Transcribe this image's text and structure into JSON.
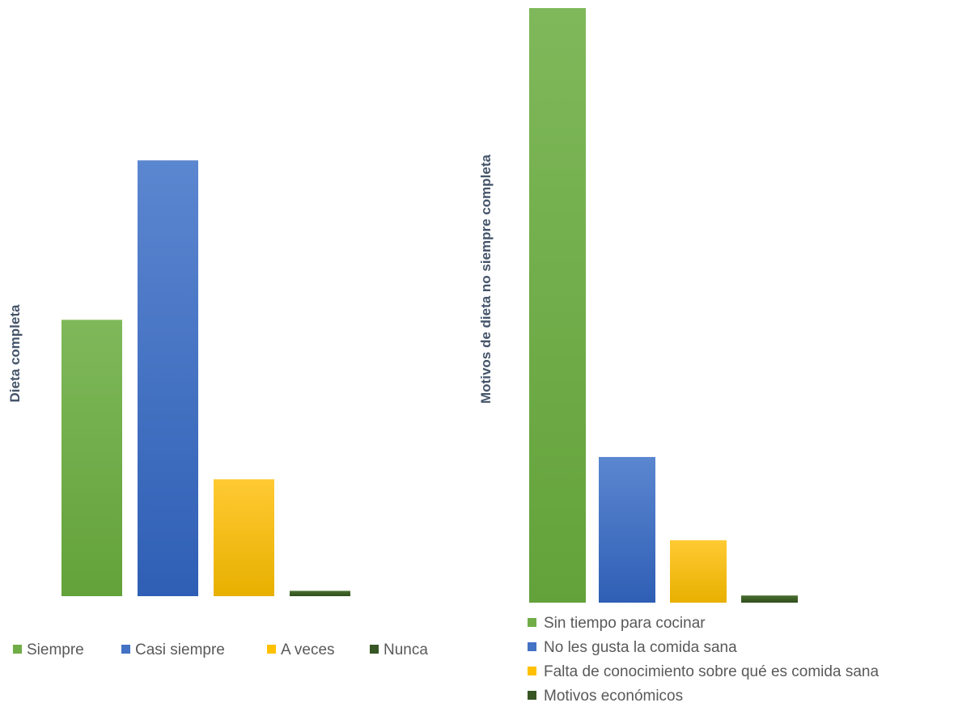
{
  "chart_data": [
    {
      "type": "bar",
      "title": "",
      "xlabel": "",
      "ylabel": "Dieta completa",
      "categories": [
        "Siempre",
        "Casi siempre",
        "A veces",
        "Nunca"
      ],
      "values": [
        52,
        82,
        22,
        1
      ],
      "colors": [
        "#70ad47",
        "#4472c4",
        "#ffc000",
        "#375623"
      ],
      "ylim": [
        0,
        100
      ],
      "grid": false,
      "legend_position": "bottom"
    },
    {
      "type": "bar",
      "title": "",
      "xlabel": "",
      "ylabel": "Motivos de dieta no siempre completa",
      "categories": [
        "Sin tiempo para cocinar",
        "No les gusta la comida sana",
        "Falta de conocimiento sobre qué es comida sana",
        "Motivos económicos"
      ],
      "values": [
        100,
        24.5,
        10.5,
        1.2
      ],
      "colors": [
        "#70ad47",
        "#4472c4",
        "#ffc000",
        "#375623"
      ],
      "ylim": [
        0,
        100
      ],
      "grid": false,
      "legend_position": "bottom"
    }
  ]
}
